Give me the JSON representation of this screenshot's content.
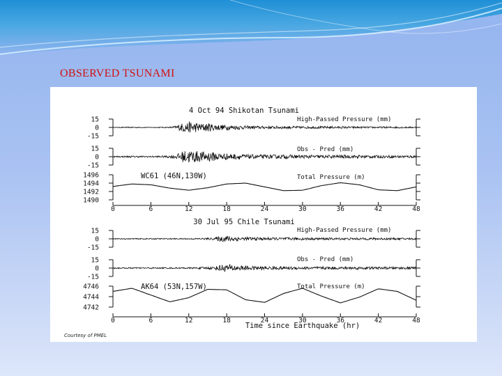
{
  "slide": {
    "title": "OBSERVED TSUNAMI",
    "accent_color": "#d01010",
    "background_top": "#93b4ef",
    "background_bottom": "#dde6fa"
  },
  "figure": {
    "credit": "Courtesy of PMEL",
    "xlabel": "Time since Earthquake (hr)"
  },
  "chart_data": [
    {
      "type": "line",
      "title": "4 Oct 94 Shikotan Tsunami",
      "xlim": [
        0,
        48
      ],
      "xticks": [
        0,
        6,
        12,
        18,
        24,
        30,
        36,
        42,
        48
      ],
      "station": "WC61 (46N,130W)",
      "panels": [
        {
          "label": "High-Passed Pressure (mm)",
          "yticks": [
            "15",
            "0",
            "-15"
          ],
          "ylim": [
            -15,
            15
          ],
          "series": [
            {
              "x": [
                0,
                3,
                6,
                9,
                10,
                11,
                12,
                13,
                14,
                15,
                16,
                17,
                18,
                19,
                20,
                21,
                24,
                27,
                30,
                33,
                36,
                39,
                42,
                45,
                48
              ],
              "y": [
                0.5,
                1,
                0.6,
                1,
                3,
                8,
                10,
                9,
                7,
                8,
                6,
                5,
                5,
                4,
                4,
                3,
                2.5,
                2.5,
                2,
                2,
                2,
                1.5,
                1.5,
                1.5,
                1.2
              ]
            }
          ]
        },
        {
          "label": "Obs - Pred (mm)",
          "yticks": [
            "15",
            "0",
            "-15"
          ],
          "ylim": [
            -15,
            15
          ],
          "series": [
            {
              "x": [
                0,
                3,
                6,
                9,
                10,
                11,
                12,
                13,
                14,
                15,
                16,
                17,
                18,
                19,
                20,
                21,
                24,
                27,
                30,
                33,
                36,
                39,
                42,
                45,
                48
              ],
              "y": [
                1,
                1.5,
                1.2,
                2,
                4,
                10,
                12,
                11,
                9,
                10,
                8,
                7,
                6,
                5,
                5,
                4,
                3.5,
                3.5,
                3,
                3,
                3,
                3,
                2.5,
                2.5,
                2.5
              ]
            }
          ]
        },
        {
          "label": "Total Pressure (m)",
          "yticks": [
            "1496",
            "1494",
            "1492",
            "1490"
          ],
          "ylim": [
            1490,
            1496
          ],
          "series": [
            {
              "x": [
                0,
                3,
                6,
                9,
                12,
                15,
                18,
                21,
                24,
                27,
                30,
                33,
                36,
                39,
                42,
                45,
                48
              ],
              "y": [
                1493.2,
                1493.8,
                1493.6,
                1492.8,
                1492.3,
                1492.9,
                1493.8,
                1494.0,
                1493.1,
                1492.2,
                1492.3,
                1493.4,
                1494.1,
                1493.6,
                1492.4,
                1492.2,
                1493.1
              ]
            }
          ]
        }
      ]
    },
    {
      "type": "line",
      "title": "30 Jul 95 Chile Tsunami",
      "xlim": [
        0,
        48
      ],
      "xticks": [
        0,
        6,
        12,
        18,
        24,
        30,
        36,
        42,
        48
      ],
      "station": "AK64 (53N,157W)",
      "panels": [
        {
          "label": "High-Passed Pressure (mm)",
          "yticks": [
            "15",
            "0",
            "-15"
          ],
          "ylim": [
            -15,
            15
          ],
          "series": [
            {
              "x": [
                0,
                6,
                12,
                16,
                17,
                18,
                19,
                20,
                21,
                22,
                24,
                27,
                30,
                33,
                36,
                39,
                42,
                45,
                48
              ],
              "y": [
                0.8,
                1,
                1,
                2,
                5,
                6,
                5,
                4,
                3,
                3,
                2.5,
                2.5,
                2.5,
                2,
                2,
                2,
                2,
                1.8,
                1.8
              ]
            }
          ]
        },
        {
          "label": "Obs - Pred (mm)",
          "yticks": [
            "15",
            "0",
            "-15"
          ],
          "ylim": [
            -15,
            15
          ],
          "series": [
            {
              "x": [
                0,
                6,
                12,
                16,
                17,
                18,
                19,
                20,
                21,
                22,
                24,
                27,
                30,
                33,
                36,
                39,
                42,
                45,
                48
              ],
              "y": [
                1,
                1.2,
                1.2,
                2.5,
                6,
                7,
                6,
                5,
                4,
                3.5,
                3,
                3,
                2.5,
                2.5,
                2.5,
                2.5,
                2.2,
                2.2,
                2.2
              ]
            }
          ]
        },
        {
          "label": "Total Pressure (m)",
          "yticks": [
            "4746",
            "4744",
            "4742"
          ],
          "ylim": [
            4742,
            4746
          ],
          "series": [
            {
              "x": [
                0,
                3,
                6,
                9,
                12,
                15,
                18,
                21,
                24,
                27,
                30,
                33,
                36,
                39,
                42,
                45,
                48
              ],
              "y": [
                4745.0,
                4745.6,
                4744.3,
                4743.0,
                4743.8,
                4745.4,
                4745.3,
                4743.4,
                4742.9,
                4744.6,
                4745.6,
                4744.1,
                4742.8,
                4743.9,
                4745.5,
                4745.0,
                4743.3
              ]
            }
          ]
        }
      ]
    }
  ]
}
